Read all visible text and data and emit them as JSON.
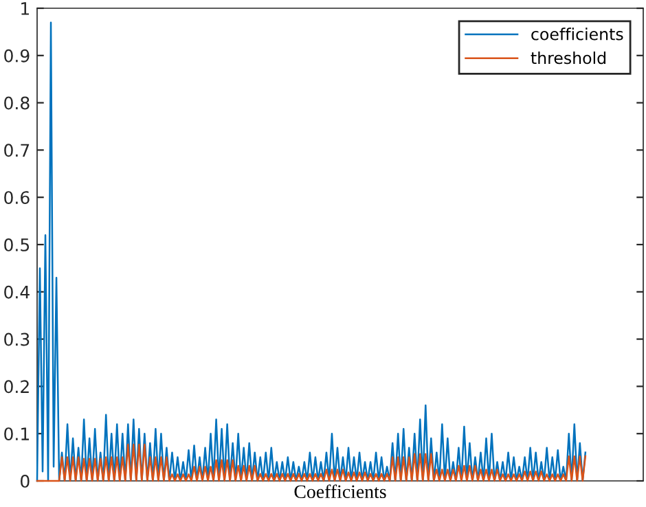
{
  "chart_data": {
    "type": "line",
    "xlabel": "Coefficients",
    "categories": [
      null,
      null,
      null,
      null,
      null,
      null,
      null,
      null,
      null,
      null,
      null,
      null,
      null,
      null,
      null,
      null,
      null,
      null,
      null,
      null,
      null,
      null,
      null,
      null,
      null,
      null,
      null,
      null,
      null,
      null,
      null,
      null,
      null,
      null,
      null,
      null,
      null,
      null,
      null,
      null,
      null,
      null,
      null,
      null,
      null,
      null,
      null,
      null,
      null,
      null,
      null,
      null,
      null,
      null,
      null,
      null,
      null,
      null,
      null,
      null,
      null,
      null,
      null,
      null,
      null,
      null,
      null,
      null,
      null,
      null,
      null,
      null,
      null,
      null,
      null,
      null,
      null,
      null,
      null,
      null,
      null,
      null,
      null,
      null,
      null,
      null,
      null,
      null,
      null,
      null,
      null,
      null,
      null,
      null,
      null,
      null,
      null,
      null,
      null,
      null,
      null,
      null,
      null,
      null,
      null,
      null,
      null,
      null,
      null,
      null,
      null,
      null,
      null,
      null,
      null,
      null,
      null,
      null,
      null,
      null,
      null,
      null,
      null,
      null,
      null,
      null,
      null,
      null,
      null,
      null,
      null,
      null,
      null,
      null,
      null,
      null,
      null,
      null,
      null,
      null,
      null,
      null,
      null,
      null,
      null,
      null,
      null,
      null,
      null,
      null,
      null,
      null,
      null,
      null,
      null,
      null,
      null,
      null,
      null,
      null,
      null,
      null,
      null,
      null,
      null,
      null,
      null,
      null,
      null,
      null,
      null,
      null,
      null,
      null,
      null,
      null,
      null,
      null,
      null,
      null,
      null,
      null,
      null,
      null,
      null,
      null,
      null,
      null,
      null,
      null,
      null,
      null,
      null,
      null,
      null,
      null,
      null,
      null,
      null,
      null,
      null,
      null,
      null,
      null,
      null,
      null,
      null,
      null,
      null,
      null,
      null,
      null,
      null,
      null,
      null,
      null,
      null,
      null,
      null,
      null,
      null
    ],
    "series": [
      {
        "name": "coefficients",
        "color": "#0072bd",
        "values": [
          0,
          0.45,
          0.02,
          0.52,
          0,
          0.97,
          0.03,
          0.43,
          0,
          0.06,
          0,
          0.12,
          0,
          0.09,
          0,
          0.07,
          0,
          0.13,
          0,
          0.09,
          0,
          0.11,
          0,
          0.06,
          0,
          0.14,
          0,
          0.1,
          0,
          0.12,
          0,
          0.1,
          0,
          0.12,
          0,
          0.13,
          0,
          0.11,
          0,
          0.1,
          0,
          0.08,
          0,
          0.11,
          0,
          0.1,
          0,
          0.07,
          0,
          0.06,
          0,
          0.05,
          0,
          0.04,
          0,
          0.065,
          0,
          0.075,
          0,
          0.05,
          0,
          0.07,
          0,
          0.1,
          0,
          0.13,
          0,
          0.11,
          0,
          0.12,
          0,
          0.08,
          0,
          0.1,
          0,
          0.07,
          0,
          0.08,
          0,
          0.06,
          0,
          0.05,
          0,
          0.06,
          0,
          0.07,
          0,
          0.04,
          0,
          0.04,
          0,
          0.05,
          0,
          0.04,
          0,
          0.03,
          0,
          0.04,
          0,
          0.06,
          0,
          0.05,
          0,
          0.04,
          0,
          0.06,
          0,
          0.1,
          0,
          0.07,
          0,
          0.05,
          0,
          0.07,
          0,
          0.05,
          0,
          0.06,
          0,
          0.04,
          0,
          0.04,
          0,
          0.06,
          0,
          0.05,
          0,
          0.03,
          0,
          0.08,
          0,
          0.1,
          0,
          0.11,
          0,
          0.07,
          0,
          0.1,
          0,
          0.13,
          0,
          0.16,
          0,
          0.09,
          0,
          0.06,
          0,
          0.12,
          0,
          0.09,
          0,
          0.04,
          0,
          0.07,
          0,
          0.115,
          0,
          0.08,
          0,
          0.05,
          0,
          0.06,
          0,
          0.09,
          0,
          0.1,
          0,
          0.04,
          0,
          0.04,
          0,
          0.06,
          0,
          0.05,
          0,
          0.03,
          0,
          0.05,
          0,
          0.07,
          0,
          0.06,
          0,
          0.04,
          0,
          0.07,
          0,
          0.05,
          0,
          0.065,
          0,
          0.03,
          0,
          0.1,
          0,
          0.12,
          0,
          0.08,
          0,
          0.06,
          null,
          null,
          null,
          null,
          null,
          null,
          null,
          null,
          null,
          null,
          null,
          null,
          null,
          null,
          null,
          null,
          null,
          null,
          null,
          null,
          null
        ]
      },
      {
        "name": "threshold",
        "color": "#d95319",
        "values": [
          0,
          0,
          0,
          0,
          0,
          0,
          0,
          0,
          0,
          0.05,
          0,
          0.05,
          0,
          0.05,
          0,
          0.05,
          0,
          0.047,
          0,
          0.047,
          0,
          0.047,
          0,
          0.047,
          0,
          0.05,
          0,
          0.05,
          0,
          0.05,
          0,
          0.05,
          0,
          0.077,
          0,
          0.077,
          0,
          0.077,
          0,
          0.077,
          0,
          0.05,
          0,
          0.05,
          0,
          0.05,
          0,
          0.05,
          0,
          0.014,
          0,
          0.014,
          0,
          0.014,
          0,
          0.014,
          0,
          0.03,
          0,
          0.03,
          0,
          0.03,
          0,
          0.03,
          0,
          0.044,
          0,
          0.044,
          0,
          0.044,
          0,
          0.044,
          0,
          0.032,
          0,
          0.032,
          0,
          0.032,
          0,
          0.032,
          0,
          0.015,
          0,
          0.015,
          0,
          0.015,
          0,
          0.015,
          0,
          0.015,
          0,
          0.015,
          0,
          0.015,
          0,
          0.015,
          0,
          0.015,
          0,
          0.015,
          0,
          0.015,
          0,
          0.015,
          0,
          0.024,
          0,
          0.024,
          0,
          0.024,
          0,
          0.024,
          0,
          0.018,
          0,
          0.018,
          0,
          0.018,
          0,
          0.018,
          0,
          0.015,
          0,
          0.015,
          0,
          0.015,
          0,
          0.015,
          0,
          0.05,
          0,
          0.05,
          0,
          0.05,
          0,
          0.05,
          0,
          0.057,
          0,
          0.057,
          0,
          0.057,
          0,
          0.057,
          0,
          0.024,
          0,
          0.024,
          0,
          0.024,
          0,
          0.024,
          0,
          0.032,
          0,
          0.032,
          0,
          0.032,
          0,
          0.032,
          0,
          0.024,
          0,
          0.024,
          0,
          0.024,
          0,
          0.024,
          0,
          0.014,
          0,
          0.014,
          0,
          0.014,
          0,
          0.014,
          0,
          0.02,
          0,
          0.02,
          0,
          0.02,
          0,
          0.02,
          0,
          0.014,
          0,
          0.014,
          0,
          0.014,
          0,
          0.014,
          0,
          0.052,
          0,
          0.052,
          0,
          0.052,
          0,
          0.052,
          null,
          null,
          null,
          null,
          null,
          null,
          null,
          null,
          null,
          null,
          null,
          null,
          null,
          null,
          null,
          null,
          null,
          null,
          null,
          null,
          null
        ]
      }
    ],
    "ylim": [
      0,
      1
    ],
    "yticks": [
      0,
      0.1,
      0.2,
      0.3,
      0.4,
      0.5,
      0.6,
      0.7,
      0.8,
      0.9,
      1
    ],
    "tick_labels": "y",
    "legend": "top right",
    "grid": false
  }
}
